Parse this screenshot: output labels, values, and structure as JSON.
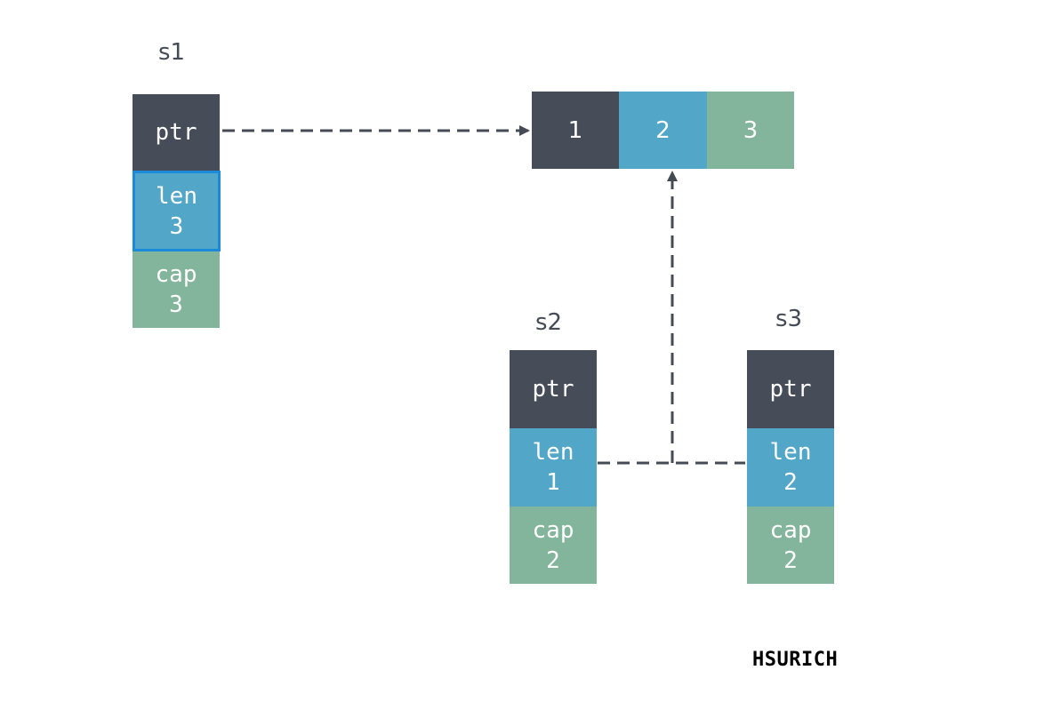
{
  "slices": {
    "s1": {
      "name": "s1",
      "ptr_label": "ptr",
      "len_label": "len",
      "len_value": "3",
      "cap_label": "cap",
      "cap_value": "3"
    },
    "s2": {
      "name": "s2",
      "ptr_label": "ptr",
      "len_label": "len",
      "len_value": "1",
      "cap_label": "cap",
      "cap_value": "2"
    },
    "s3": {
      "name": "s3",
      "ptr_label": "ptr",
      "len_label": "len",
      "len_value": "2",
      "cap_label": "cap",
      "cap_value": "2"
    }
  },
  "array": {
    "elements": [
      "1",
      "2",
      "3"
    ]
  },
  "colors": {
    "ptr": "#464c58",
    "len": "#52a6c8",
    "cap": "#83b59c",
    "arrow": "#454b55",
    "selection": "#1a8ad9"
  },
  "watermark": "HSURICH"
}
